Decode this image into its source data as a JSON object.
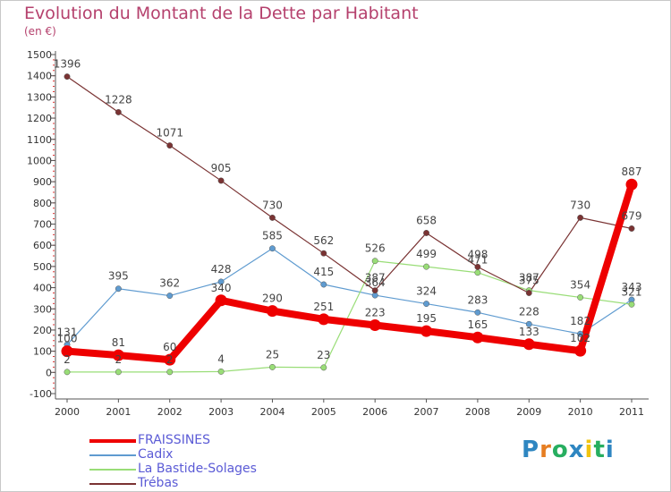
{
  "chart_data": {
    "type": "line",
    "title": "Evolution du Montant de la Dette par Habitant",
    "unit_label": "(en €)",
    "x": [
      "2000",
      "2001",
      "2002",
      "2003",
      "2004",
      "2005",
      "2006",
      "2007",
      "2008",
      "2009",
      "2010",
      "2011"
    ],
    "ylim": [
      -100,
      1500
    ],
    "yticks": [
      -100,
      0,
      100,
      200,
      300,
      400,
      500,
      600,
      700,
      800,
      900,
      1000,
      1100,
      1200,
      1300,
      1400,
      1500
    ],
    "grid": false,
    "legend_position": "bottom-left",
    "series": [
      {
        "name": "FRAISSINES",
        "color": "#ee0000",
        "values": [
          100,
          81,
          60,
          340,
          290,
          251,
          223,
          195,
          165,
          133,
          102,
          887
        ]
      },
      {
        "name": "Cadix",
        "color": "#5f9bd0",
        "values": [
          131,
          395,
          362,
          428,
          585,
          415,
          364,
          324,
          283,
          228,
          182,
          343
        ]
      },
      {
        "name": "La Bastide-Solages",
        "color": "#99dd77",
        "values": [
          2,
          2,
          2,
          4,
          25,
          23,
          526,
          499,
          471,
          387,
          354,
          321
        ]
      },
      {
        "name": "Trébas",
        "color": "#7a3333",
        "values": [
          1396,
          1228,
          1071,
          905,
          730,
          562,
          387,
          658,
          498,
          375,
          730,
          679
        ]
      }
    ]
  },
  "logo": {
    "text": "Proxiti",
    "letters": [
      "P",
      "r",
      "o",
      "x",
      "i",
      "t",
      "i"
    ],
    "colors": [
      "#2e86c1",
      "#e67e22",
      "#27ae60",
      "#2e86c1",
      "#f1c40f",
      "#27ae60",
      "#2e86c1"
    ]
  }
}
